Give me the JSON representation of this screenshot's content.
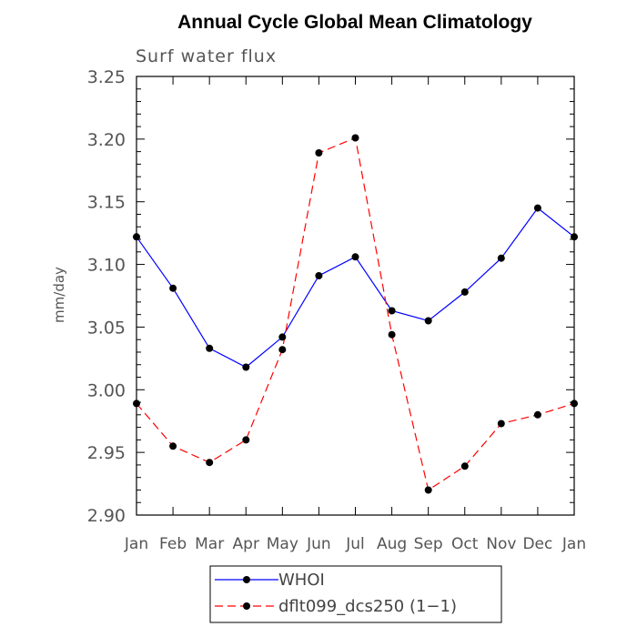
{
  "chart_data": {
    "type": "line",
    "title": "Annual Cycle Global Mean Climatology",
    "subtitle": "Surf water flux",
    "xlabel": "",
    "ylabel": "mm/day",
    "ylim": [
      2.9,
      3.25
    ],
    "yticks": [
      "2.90",
      "2.95",
      "3.00",
      "3.05",
      "3.10",
      "3.15",
      "3.20",
      "3.25"
    ],
    "categories": [
      "Jan",
      "Feb",
      "Mar",
      "Apr",
      "May",
      "Jun",
      "Jul",
      "Aug",
      "Sep",
      "Oct",
      "Nov",
      "Dec",
      "Jan"
    ],
    "series": [
      {
        "name": "WHOI",
        "color": "#0000ff",
        "style": "solid",
        "values": [
          3.122,
          3.081,
          3.033,
          3.018,
          3.042,
          3.091,
          3.106,
          3.063,
          3.055,
          3.078,
          3.105,
          3.145,
          3.122
        ]
      },
      {
        "name": "dflt099_dcs250 (1−1)",
        "color": "#ff0000",
        "style": "dashed",
        "values": [
          2.989,
          2.955,
          2.942,
          2.96,
          3.032,
          3.189,
          3.201,
          3.044,
          2.92,
          2.939,
          2.973,
          2.98,
          2.989
        ]
      }
    ],
    "legend": "bottom"
  }
}
